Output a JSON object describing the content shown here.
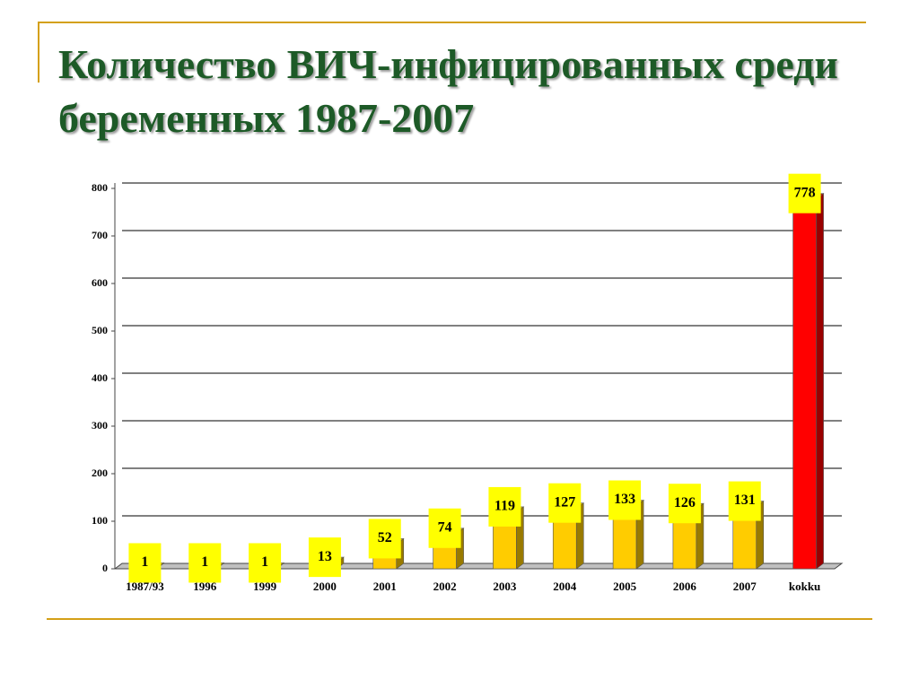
{
  "chart_data": {
    "type": "bar3d",
    "title": "Количество ВИЧ-инфицированных среди беременных 1987-2007",
    "categories": [
      "1987/93",
      "1996",
      "1999",
      "2000",
      "2001",
      "2002",
      "2003",
      "2004",
      "2005",
      "2006",
      "2007",
      "kokku"
    ],
    "values": [
      1,
      1,
      1,
      13,
      52,
      74,
      119,
      127,
      133,
      126,
      131,
      778
    ],
    "colors": [
      "#ffcc00",
      "#ffcc00",
      "#ffcc00",
      "#ffcc00",
      "#ffcc00",
      "#ffcc00",
      "#ffcc00",
      "#ffcc00",
      "#ffcc00",
      "#ffcc00",
      "#ffcc00",
      "#ff0000"
    ],
    "ylim": [
      0,
      800
    ],
    "yticks": [
      0,
      100,
      200,
      300,
      400,
      500,
      600,
      700,
      800
    ],
    "grid": true
  }
}
